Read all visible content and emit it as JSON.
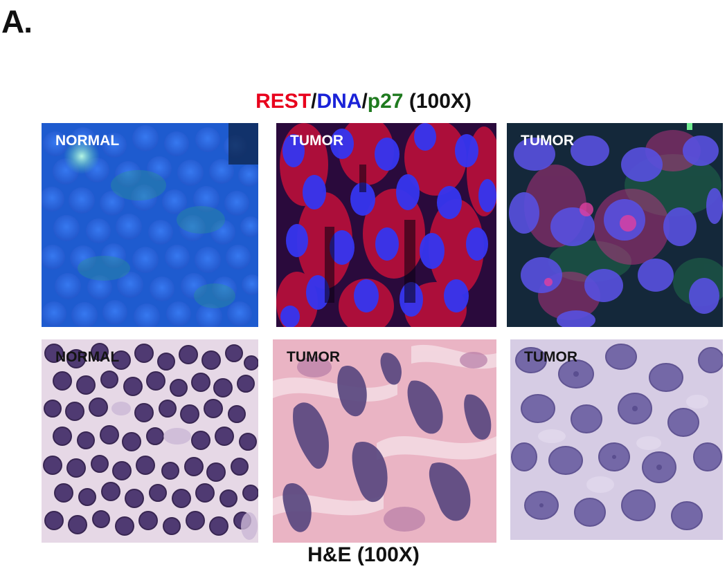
{
  "figure": {
    "panel_letter": "A.",
    "top_title": {
      "rest": "REST",
      "sep1": "/",
      "dna": "DNA",
      "sep2": "/",
      "p27": "p27",
      "magnification": " (100X)"
    },
    "bottom_title": "H&E (100X)",
    "if_row": [
      {
        "label": "NORMAL",
        "colors": {
          "bg": "#1d5fd8",
          "nucleus": "#2e6be8",
          "stain": "#2a9a8a"
        }
      },
      {
        "label": "TUMOR",
        "colors": {
          "bg": "#2a0a40",
          "nucleus": "#3a3af0",
          "stain": "#e0103a"
        }
      },
      {
        "label": "TUMOR",
        "colors": {
          "bg": "#152a3a",
          "nucleus": "#5a55e0",
          "stain": "#d0308a"
        }
      }
    ],
    "he_row": [
      {
        "label": "NORMAL",
        "colors": {
          "bg": "#e2d4e2",
          "nucleus": "#4f3a72"
        }
      },
      {
        "label": "TUMOR",
        "colors": {
          "bg": "#e9b2c2",
          "nucleus": "#5a4880"
        }
      },
      {
        "label": "TUMOR",
        "colors": {
          "bg": "#d3c8e2",
          "nucleus": "#6f63a4"
        }
      }
    ]
  }
}
